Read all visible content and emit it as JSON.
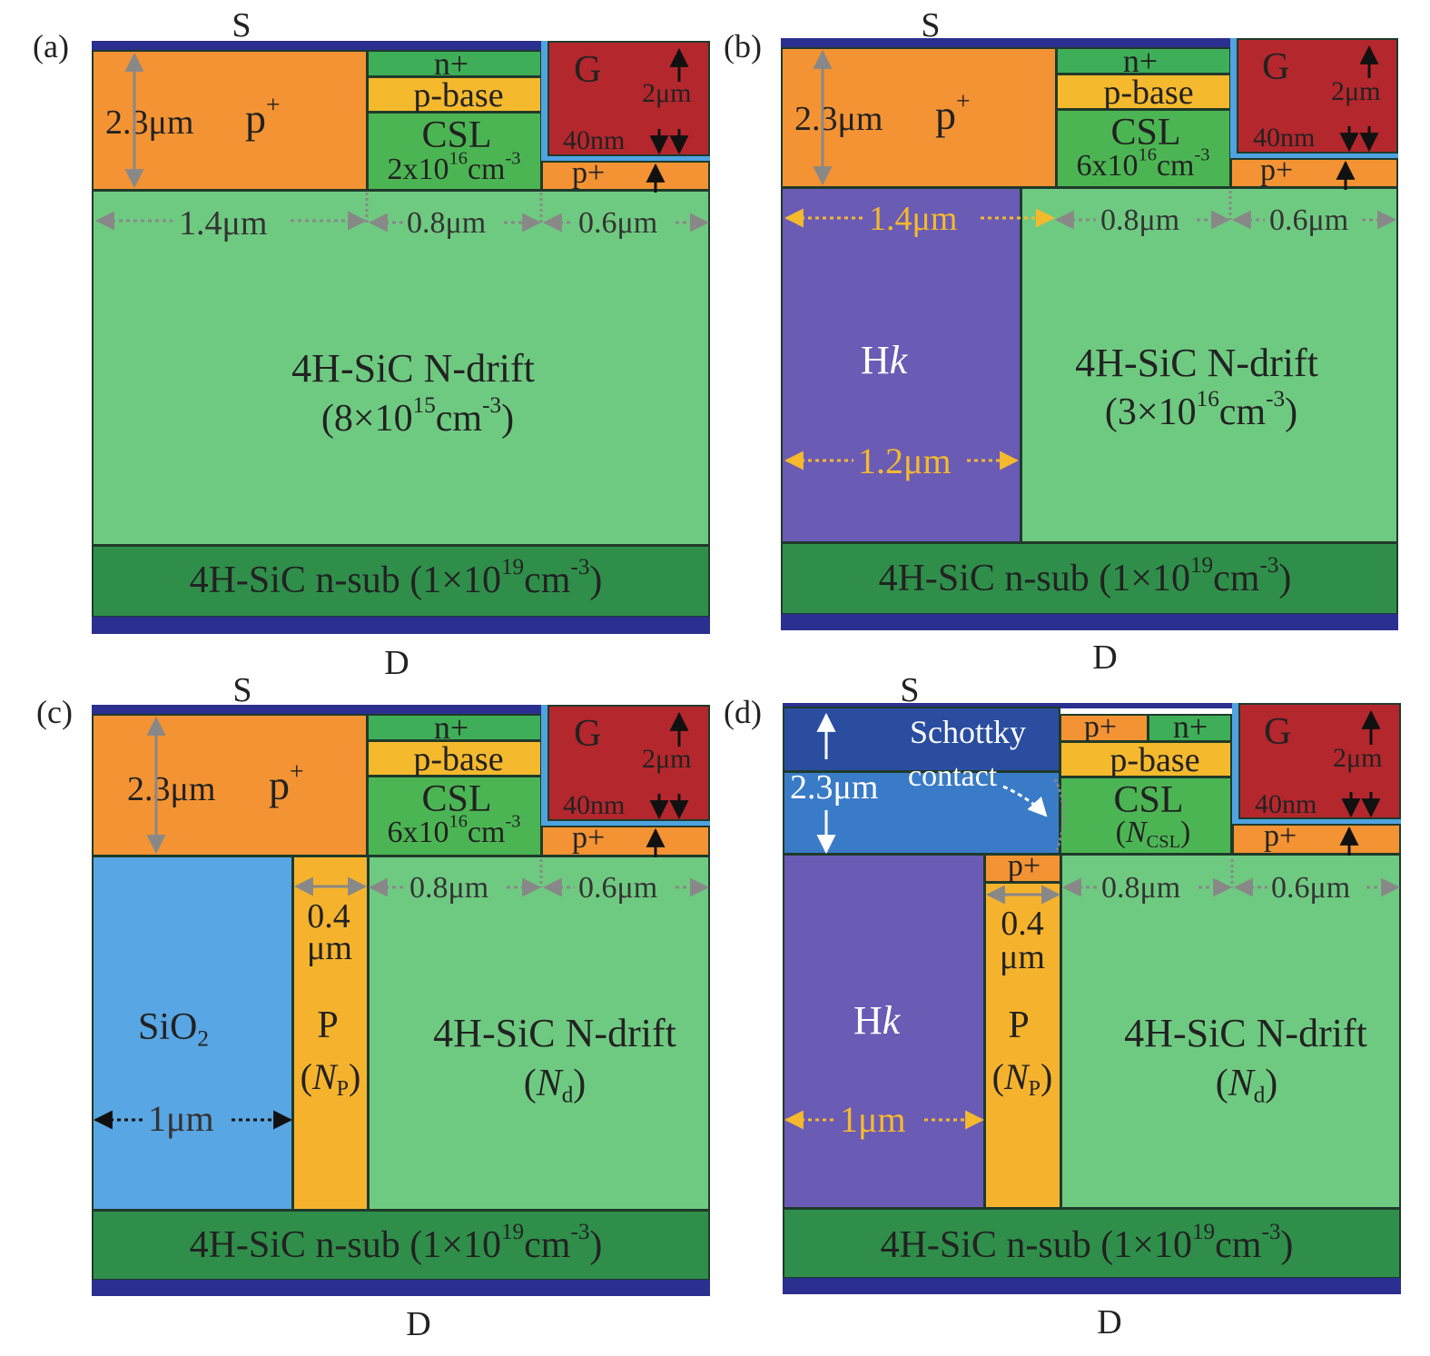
{
  "colors": {
    "electrode": "#2b2f8f",
    "p_plus": "#f39333",
    "n_plus": "#3fae58",
    "p_base": "#f5b92d",
    "csl": "#4cb553",
    "gate": "#b3272d",
    "gate_oxide": "#4fa3e0",
    "drift": "#6fca81",
    "nsub": "#2f8f4a",
    "hk": "#6a5bb5",
    "sio2": "#58a6e3",
    "p_pillar": "#f5b32d",
    "schottky": "#2a4da0",
    "schottky_light": "#3a7bc8"
  },
  "panels": {
    "a": {
      "letter": "(a)",
      "source": "S",
      "drain": "D",
      "p_plus": "p",
      "p_plus_sup": "+",
      "dim_23": "2.3μm",
      "n_plus": "n+",
      "p_base": "p-base",
      "csl": "CSL",
      "csl_conc_a": "2x10",
      "csl_conc_sup": "16",
      "csl_conc_b": "cm",
      "csl_conc_sup2": "-3",
      "gate": "G",
      "dim_2um": "2μm",
      "dim_40nm": "40nm",
      "p_plus_small": "p+",
      "dim_14": "1.4μm",
      "dim_08": "0.8μm",
      "dim_06": "0.6μm",
      "drift_title": "4H-SiC N-drift",
      "drift_conc_a": "(8",
      "drift_conc_x": "×",
      "drift_conc_b": "10",
      "drift_conc_sup": "15",
      "drift_conc_c": "cm",
      "drift_conc_sup2": "-3",
      "drift_conc_d": ")",
      "sub_a": "4H-SiC n-sub (1",
      "sub_x": "×",
      "sub_b": "10",
      "sub_sup": "19",
      "sub_c": "cm",
      "sub_sup2": "-3",
      "sub_d": ")"
    },
    "b": {
      "letter": "(b)",
      "source": "S",
      "drain": "D",
      "p_plus": "p",
      "p_plus_sup": "+",
      "dim_23": "2.3μm",
      "n_plus": "n+",
      "p_base": "p-base",
      "csl": "CSL",
      "csl_conc_a": "6x10",
      "csl_conc_sup": "16",
      "csl_conc_b": "cm",
      "csl_conc_sup2": "-3",
      "gate": "G",
      "dim_2um": "2μm",
      "dim_40nm": "40nm",
      "p_plus_small": "p+",
      "dim_14": "1.4μm",
      "dim_08": "0.8μm",
      "dim_06": "0.6μm",
      "hk_a": "H",
      "hk_b": "k",
      "dim_12": "1.2μm",
      "drift_title": "4H-SiC N-drift",
      "drift_conc_a": "(3",
      "drift_conc_x": "×",
      "drift_conc_b": "10",
      "drift_conc_sup": "16",
      "drift_conc_c": "cm",
      "drift_conc_sup2": "-3",
      "drift_conc_d": ")",
      "sub_a": "4H-SiC n-sub (1",
      "sub_x": "×",
      "sub_b": "10",
      "sub_sup": "19",
      "sub_c": "cm",
      "sub_sup2": "-3",
      "sub_d": ")"
    },
    "c": {
      "letter": "(c)",
      "source": "S",
      "drain": "D",
      "p_plus": "p",
      "p_plus_sup": "+",
      "dim_23": "2.3μm",
      "n_plus": "n+",
      "p_base": "p-base",
      "csl": "CSL",
      "csl_conc_a": "6x10",
      "csl_conc_sup": "16",
      "csl_conc_b": "cm",
      "csl_conc_sup2": "-3",
      "gate": "G",
      "dim_2um": "2μm",
      "dim_40nm": "40nm",
      "p_plus_small": "p+",
      "dim_08": "0.8μm",
      "dim_06": "0.6μm",
      "sio2_a": "SiO",
      "sio2_sub": "2",
      "dim_1um": "1μm",
      "dim_04a": "0.4",
      "dim_04b": "μm",
      "p_label": "P",
      "np_a": "(",
      "np_n": "N",
      "np_sub": "P",
      "np_b": ")",
      "drift_title": "4H-SiC N-drift",
      "nd_a": "(",
      "nd_n": "N",
      "nd_sub": "d",
      "nd_b": ")",
      "sub_a": "4H-SiC n-sub (1",
      "sub_x": "×",
      "sub_b": "10",
      "sub_sup": "19",
      "sub_c": "cm",
      "sub_sup2": "-3",
      "sub_d": ")"
    },
    "d": {
      "letter": "(d)",
      "source": "S",
      "drain": "D",
      "dim_23": "2.3μm",
      "schottky": "Schottky",
      "contact": "contact",
      "p_plus_small_top": "p+",
      "n_plus": "n+",
      "p_base": "p-base",
      "csl": "CSL",
      "ncsl_a": "(",
      "ncsl_n": "N",
      "ncsl_sub": "CSL",
      "ncsl_b": ")",
      "gate": "G",
      "dim_2um": "2μm",
      "dim_40nm": "40nm",
      "p_plus_small": "p+",
      "p_plus_pillar_top": "p+",
      "dim_08": "0.8μm",
      "dim_06": "0.6μm",
      "dim_04a": "0.4",
      "dim_04b": "μm",
      "hk_a": "H",
      "hk_b": "k",
      "dim_1um": "1μm",
      "p_label": "P",
      "np_a": "(",
      "np_n": "N",
      "np_sub": "P",
      "np_b": ")",
      "drift_title": "4H-SiC N-drift",
      "nd_a": "(",
      "nd_n": "N",
      "nd_sub": "d",
      "nd_b": ")",
      "sub_a": "4H-SiC n-sub (1",
      "sub_x": "×",
      "sub_b": "10",
      "sub_sup": "19",
      "sub_c": "cm",
      "sub_sup2": "-3",
      "sub_d": ")"
    }
  }
}
